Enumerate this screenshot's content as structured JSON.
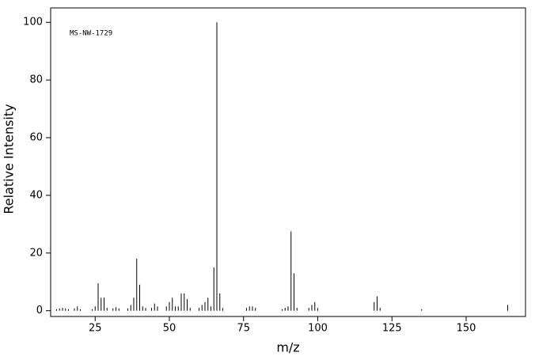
{
  "chart_data": {
    "type": "stem",
    "annotation": "MS-NW-1729",
    "x_label": "m/z",
    "y_label": "Relative Intensity",
    "x": [
      12,
      13,
      14,
      15,
      16,
      18,
      19,
      20,
      24,
      25,
      26,
      27,
      28,
      29,
      31,
      32,
      33,
      36,
      37,
      38,
      39,
      40,
      41,
      42,
      44,
      45,
      46,
      49,
      50,
      51,
      52,
      53,
      54,
      55,
      56,
      57,
      60,
      61,
      62,
      63,
      64,
      65,
      66,
      67,
      68,
      76,
      77,
      78,
      79,
      88,
      89,
      90,
      91,
      92,
      93,
      97,
      98,
      99,
      100,
      119,
      120,
      121,
      135,
      164
    ],
    "values": [
      0.5,
      0.8,
      1,
      0.8,
      0.5,
      0.8,
      1.5,
      0.5,
      0.5,
      1.5,
      9.5,
      4.5,
      4.5,
      1,
      0.8,
      1.2,
      0.8,
      0.8,
      2,
      4.5,
      18,
      9,
      1.5,
      1,
      1,
      2.5,
      1.5,
      1.5,
      3,
      4.5,
      1.5,
      1.5,
      6,
      6,
      4,
      1,
      1,
      2,
      3,
      4.5,
      1.5,
      15,
      100,
      6,
      1,
      1,
      1.5,
      1.5,
      1,
      0.5,
      1,
      1.5,
      27.5,
      13,
      1,
      1,
      2,
      3,
      1,
      3,
      5,
      1,
      0.5,
      2
    ],
    "color": "#000000",
    "xlim": [
      10,
      170
    ],
    "xticks": [
      25,
      50,
      75,
      100,
      125,
      150
    ],
    "ylim": [
      -2,
      105
    ],
    "yticks": [
      0,
      20,
      40,
      60,
      80,
      100
    ]
  }
}
